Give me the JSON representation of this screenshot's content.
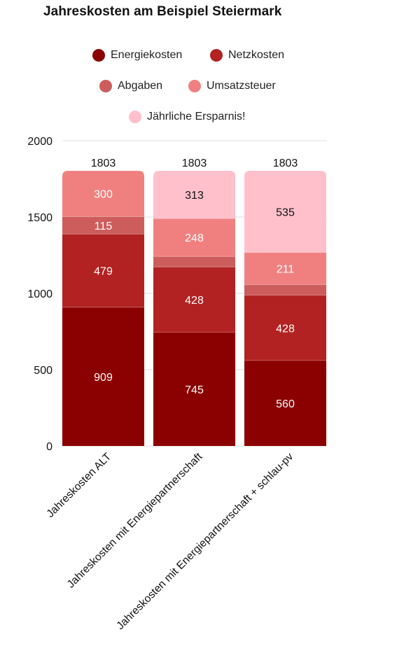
{
  "chart_data": {
    "type": "bar",
    "stacked": true,
    "title": "Jahreskosten am Beispiel Steiermark",
    "categories": [
      "Jahreskosten ALT",
      "Jahreskosten mit Energiepartnerschaft",
      "Jahreskosten mit Energiepartnerschaft + schlau-pv"
    ],
    "series": [
      {
        "name": "Energiekosten",
        "color": "#8b0000",
        "values": [
          909,
          745,
          560
        ],
        "labels": [
          "909",
          "745",
          "560"
        ],
        "label_color": "#ffffff"
      },
      {
        "name": "Netzkosten",
        "color": "#b22222",
        "values": [
          479,
          428,
          428
        ],
        "labels": [
          "479",
          "428",
          "428"
        ],
        "label_color": "#ffffff"
      },
      {
        "name": "Abgaben",
        "color": "#cd5c5c",
        "values": [
          115,
          69,
          69
        ],
        "labels": [
          "115",
          "",
          ""
        ],
        "label_color": "#ffffff"
      },
      {
        "name": "Umsatzsteuer",
        "color": "#f08080",
        "values": [
          300,
          248,
          211
        ],
        "labels": [
          "300",
          "248",
          "211"
        ],
        "label_color": "#ffffff"
      },
      {
        "name": "Jährliche Ersparnis!",
        "color": "#ffc0cb",
        "values": [
          0,
          313,
          535
        ],
        "labels": [
          "",
          "313",
          "535"
        ],
        "label_color": "#111111"
      }
    ],
    "totals": [
      "1803",
      "1803",
      "1803"
    ],
    "yticks": [
      "0",
      "500",
      "1000",
      "1500",
      "2000"
    ],
    "ylim": [
      0,
      2000
    ],
    "xlabel": "",
    "ylabel": "",
    "grid": true,
    "legend_position": "top"
  }
}
